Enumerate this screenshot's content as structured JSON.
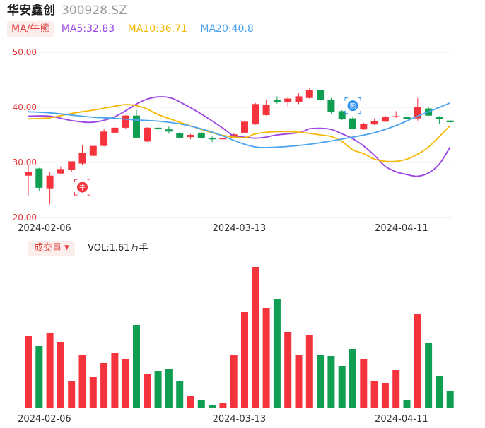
{
  "header": {
    "name": "华安鑫创",
    "code": "300928.SZ"
  },
  "ma_toggle_label": "MA/牛熊",
  "ma_legend": [
    {
      "label": "MA5:32.83",
      "color": "#9b45e6"
    },
    {
      "label": "MA10:36.71",
      "color": "#f5b800"
    },
    {
      "label": "MA20:40.8",
      "color": "#4aa3ef"
    }
  ],
  "volume_toggle_label": "成交量",
  "volume_info": "VOL:1.61万手",
  "colors": {
    "up": "#f5333d",
    "down": "#0f9e52",
    "axis_label": "#e23b3b"
  },
  "markers": [
    {
      "label": "牛",
      "index": 5,
      "price": 25.5,
      "color": "#f5333d",
      "icon": "bull-icon"
    },
    {
      "label": "熊",
      "index": 30,
      "price": 40.3,
      "color": "#2c8ff0",
      "icon": "bear-icon"
    }
  ],
  "chart_data": {
    "type": "candlestick",
    "ylim": [
      20,
      50
    ],
    "yticks": [
      "20.00",
      "30.00",
      "40.00",
      "50.00"
    ],
    "xtick_labels": [
      {
        "index": 1.5,
        "label": "2024-02-06"
      },
      {
        "index": 19.5,
        "label": "2024-03-13"
      },
      {
        "index": 34.5,
        "label": "2024-04-11"
      }
    ],
    "candles": [
      {
        "o": 27.6,
        "h": 29.5,
        "l": 24.0,
        "c": 28.3
      },
      {
        "o": 28.9,
        "h": 29.0,
        "l": 24.9,
        "c": 25.4
      },
      {
        "o": 25.3,
        "h": 28.2,
        "l": 22.4,
        "c": 27.6
      },
      {
        "o": 28.0,
        "h": 29.3,
        "l": 27.9,
        "c": 28.8
      },
      {
        "o": 28.7,
        "h": 30.2,
        "l": 28.3,
        "c": 30.2
      },
      {
        "o": 29.8,
        "h": 33.2,
        "l": 29.5,
        "c": 31.7
      },
      {
        "o": 31.2,
        "h": 33.0,
        "l": 31.1,
        "c": 33.0
      },
      {
        "o": 33.0,
        "h": 36.1,
        "l": 32.9,
        "c": 35.6
      },
      {
        "o": 35.4,
        "h": 37.1,
        "l": 35.2,
        "c": 36.3
      },
      {
        "o": 36.3,
        "h": 38.6,
        "l": 36.1,
        "c": 38.5
      },
      {
        "o": 38.5,
        "h": 39.5,
        "l": 34.5,
        "c": 34.5
      },
      {
        "o": 33.8,
        "h": 36.4,
        "l": 33.7,
        "c": 36.3
      },
      {
        "o": 36.3,
        "h": 37.0,
        "l": 35.5,
        "c": 36.1
      },
      {
        "o": 36.0,
        "h": 36.5,
        "l": 35.2,
        "c": 35.6
      },
      {
        "o": 35.3,
        "h": 35.5,
        "l": 34.3,
        "c": 34.5
      },
      {
        "o": 34.6,
        "h": 35.2,
        "l": 34.2,
        "c": 35.0
      },
      {
        "o": 35.4,
        "h": 35.6,
        "l": 34.3,
        "c": 34.4
      },
      {
        "o": 34.4,
        "h": 34.7,
        "l": 33.7,
        "c": 34.2
      },
      {
        "o": 34.2,
        "h": 34.6,
        "l": 34.1,
        "c": 34.4
      },
      {
        "o": 34.5,
        "h": 35.3,
        "l": 34.4,
        "c": 35.1
      },
      {
        "o": 35.4,
        "h": 37.6,
        "l": 35.3,
        "c": 37.4
      },
      {
        "o": 36.9,
        "h": 40.8,
        "l": 36.8,
        "c": 40.6
      },
      {
        "o": 38.6,
        "h": 41.4,
        "l": 38.5,
        "c": 40.4
      },
      {
        "o": 41.4,
        "h": 42.0,
        "l": 40.7,
        "c": 41.0
      },
      {
        "o": 40.9,
        "h": 41.9,
        "l": 40.2,
        "c": 41.6
      },
      {
        "o": 40.9,
        "h": 42.6,
        "l": 40.6,
        "c": 42.0
      },
      {
        "o": 41.7,
        "h": 43.6,
        "l": 41.6,
        "c": 43.1
      },
      {
        "o": 43.1,
        "h": 43.2,
        "l": 41.2,
        "c": 41.3
      },
      {
        "o": 41.3,
        "h": 41.7,
        "l": 38.9,
        "c": 39.2
      },
      {
        "o": 39.3,
        "h": 39.5,
        "l": 37.7,
        "c": 37.9
      },
      {
        "o": 38.0,
        "h": 38.3,
        "l": 36.0,
        "c": 36.1
      },
      {
        "o": 36.0,
        "h": 37.2,
        "l": 35.9,
        "c": 37.0
      },
      {
        "o": 36.9,
        "h": 38.0,
        "l": 36.8,
        "c": 37.5
      },
      {
        "o": 37.4,
        "h": 38.5,
        "l": 37.3,
        "c": 38.3
      },
      {
        "o": 38.3,
        "h": 39.3,
        "l": 38.1,
        "c": 38.4
      },
      {
        "o": 38.3,
        "h": 38.4,
        "l": 37.6,
        "c": 37.9
      },
      {
        "o": 38.0,
        "h": 41.7,
        "l": 37.6,
        "c": 40.1
      },
      {
        "o": 39.8,
        "h": 40.0,
        "l": 38.4,
        "c": 38.5
      },
      {
        "o": 38.3,
        "h": 38.4,
        "l": 37.0,
        "c": 37.9
      },
      {
        "o": 37.6,
        "h": 37.9,
        "l": 36.9,
        "c": 37.3
      }
    ],
    "volume_max": 100,
    "volumes": [
      51,
      44,
      53,
      47,
      19,
      38,
      22,
      32,
      39,
      35,
      59,
      24,
      26,
      28,
      19,
      9,
      6,
      2.5,
      3.5,
      38,
      68,
      100,
      71,
      77,
      54,
      38,
      52,
      38,
      37,
      30,
      42,
      35,
      19,
      18,
      27,
      6,
      67,
      46,
      23,
      12.5
    ],
    "ma_series": [
      {
        "name": "MA5",
        "color": "#9b45e6",
        "points": [
          [
            0,
            38.4
          ],
          [
            2,
            38.4
          ],
          [
            4,
            37.6
          ],
          [
            6,
            37.3
          ],
          [
            8,
            38.3
          ],
          [
            10,
            40.6
          ],
          [
            11,
            41.5
          ],
          [
            12,
            41.9
          ],
          [
            13,
            41.8
          ],
          [
            14,
            41.0
          ],
          [
            16,
            38.8
          ],
          [
            18,
            36.2
          ],
          [
            19,
            34.8
          ],
          [
            20,
            34.6
          ],
          [
            21,
            34.4
          ],
          [
            22,
            34.6
          ],
          [
            23,
            35.0
          ],
          [
            25,
            35.4
          ],
          [
            26,
            36.1
          ],
          [
            27,
            36.2
          ],
          [
            28,
            36.0
          ],
          [
            29,
            35.2
          ],
          [
            30,
            34.3
          ],
          [
            31,
            33.0
          ],
          [
            32,
            31.3
          ],
          [
            33,
            29.3
          ],
          [
            34,
            28.3
          ],
          [
            35,
            27.8
          ],
          [
            36,
            27.5
          ],
          [
            37,
            28.1
          ],
          [
            38,
            29.7
          ],
          [
            39,
            32.8
          ]
        ]
      },
      {
        "name": "MA10",
        "color": "#f5b800",
        "points": [
          [
            0,
            37.9
          ],
          [
            2,
            38.1
          ],
          [
            4,
            38.9
          ],
          [
            6,
            39.5
          ],
          [
            8,
            40.2
          ],
          [
            9,
            40.5
          ],
          [
            10,
            40.3
          ],
          [
            11,
            39.7
          ],
          [
            12,
            38.7
          ],
          [
            14,
            37.3
          ],
          [
            16,
            36.0
          ],
          [
            18,
            34.9
          ],
          [
            20,
            34.5
          ],
          [
            21,
            35.2
          ],
          [
            23,
            35.6
          ],
          [
            25,
            35.5
          ],
          [
            27,
            35.0
          ],
          [
            28,
            34.7
          ],
          [
            29,
            33.8
          ],
          [
            30,
            32.3
          ],
          [
            31,
            31.6
          ],
          [
            32,
            30.6
          ],
          [
            33,
            30.2
          ],
          [
            34,
            30.2
          ],
          [
            35,
            30.6
          ],
          [
            36,
            31.5
          ],
          [
            37,
            32.8
          ],
          [
            38,
            34.7
          ],
          [
            39,
            36.7
          ]
        ]
      },
      {
        "name": "MA20",
        "color": "#4aa3ef",
        "points": [
          [
            0,
            39.2
          ],
          [
            2,
            39.0
          ],
          [
            4,
            38.6
          ],
          [
            6,
            38.2
          ],
          [
            8,
            38.0
          ],
          [
            10,
            37.7
          ],
          [
            12,
            37.5
          ],
          [
            14,
            37.0
          ],
          [
            16,
            36.1
          ],
          [
            18,
            34.8
          ],
          [
            19,
            34.0
          ],
          [
            20,
            33.3
          ],
          [
            21,
            32.8
          ],
          [
            22,
            32.7
          ],
          [
            24,
            32.9
          ],
          [
            26,
            33.3
          ],
          [
            28,
            33.9
          ],
          [
            30,
            34.6
          ],
          [
            32,
            35.4
          ],
          [
            34,
            36.7
          ],
          [
            36,
            38.4
          ],
          [
            38,
            40.0
          ],
          [
            39,
            40.8
          ]
        ]
      }
    ]
  }
}
